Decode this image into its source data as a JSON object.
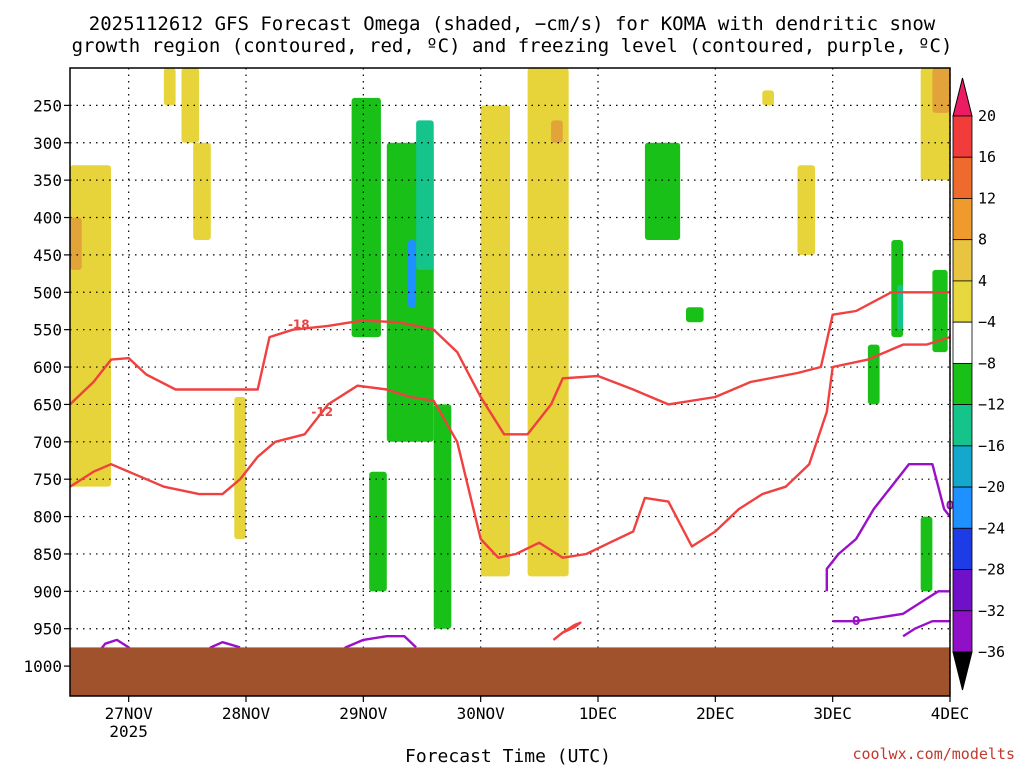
{
  "chart_data": {
    "type": "heatmap",
    "title_line1": "2025112612 GFS Forecast Omega (shaded, −cm/s) for KOMA with dendritic snow",
    "title_line2": "growth region (contoured, red, ºC) and freezing level (contoured, purple, ºC)",
    "xlabel": "Forecast Time (UTC)",
    "ylabel": "",
    "credit": "coolwx.com/modelts",
    "x_days": [
      27,
      28,
      29,
      30,
      31,
      32,
      33,
      34
    ],
    "x_range": [
      26.5,
      34.0
    ],
    "x_tick_labels": [
      "27NOV",
      "28NOV",
      "29NOV",
      "30NOV",
      "1DEC",
      "2DEC",
      "3DEC",
      "4DEC"
    ],
    "x_year_label": "2025",
    "y_ticks": [
      250,
      300,
      350,
      400,
      450,
      500,
      550,
      600,
      650,
      700,
      750,
      800,
      850,
      900,
      950,
      1000
    ],
    "y_range": [
      200,
      1040
    ],
    "colorbar_labels": [
      "20",
      "16",
      "12",
      "8",
      "4",
      "−4",
      "−8",
      "−12",
      "−16",
      "−20",
      "−24",
      "−28",
      "−32",
      "−36"
    ],
    "colorbar_colors": [
      "#ec1c63",
      "#f23c3c",
      "#ef6b2d",
      "#ef9a2d",
      "#e8c440",
      "#e8d840",
      "#ffffff",
      "#18c018",
      "#14c48a",
      "#14a8cc",
      "#1e90ff",
      "#1e3ce6",
      "#7010c8",
      "#9010c8",
      "#a4a4a4",
      "#000000"
    ],
    "shading": [
      {
        "name": "yellow-west",
        "color": "#e6d43a",
        "x": [
          26.5,
          26.85
        ],
        "y": [
          330,
          760
        ]
      },
      {
        "name": "orange-west",
        "color": "#e2a33a",
        "x": [
          26.5,
          26.6
        ],
        "y": [
          400,
          470
        ]
      },
      {
        "name": "yellow-28nov-upper",
        "color": "#e6d43a",
        "x": [
          27.45,
          27.6
        ],
        "y": [
          200,
          300
        ]
      },
      {
        "name": "yellow-28nov-mid",
        "color": "#e6d43a",
        "x": [
          27.55,
          27.7
        ],
        "y": [
          300,
          430
        ]
      },
      {
        "name": "yellow-28nov-low",
        "color": "#e6d43a",
        "x": [
          27.9,
          28.0
        ],
        "y": [
          640,
          830
        ]
      },
      {
        "name": "yellow-28nov-upper2",
        "color": "#e6d43a",
        "x": [
          27.3,
          27.4
        ],
        "y": [
          200,
          250
        ]
      },
      {
        "name": "green-29nov-main",
        "color": "#18c018",
        "x": [
          28.9,
          29.15
        ],
        "y": [
          240,
          560
        ]
      },
      {
        "name": "green-29nov-right",
        "color": "#18c018",
        "x": [
          29.2,
          29.6
        ],
        "y": [
          300,
          700
        ]
      },
      {
        "name": "cyan-29nov",
        "color": "#14c48a",
        "x": [
          29.45,
          29.6
        ],
        "y": [
          270,
          470
        ]
      },
      {
        "name": "blue-29nov",
        "color": "#1e90ff",
        "x": [
          29.38,
          29.45
        ],
        "y": [
          430,
          520
        ]
      },
      {
        "name": "green-29nov-low",
        "color": "#18c018",
        "x": [
          29.05,
          29.2
        ],
        "y": [
          740,
          900
        ]
      },
      {
        "name": "green-30nov-low",
        "color": "#18c018",
        "x": [
          29.6,
          29.75
        ],
        "y": [
          650,
          950
        ]
      },
      {
        "name": "yellow-30nov",
        "color": "#e6d43a",
        "x": [
          30.0,
          30.25
        ],
        "y": [
          250,
          880
        ]
      },
      {
        "name": "yellow-30nov-right",
        "color": "#e6d43a",
        "x": [
          30.4,
          30.75
        ],
        "y": [
          200,
          880
        ]
      },
      {
        "name": "orange-30nov",
        "color": "#e2a33a",
        "x": [
          30.6,
          30.7
        ],
        "y": [
          270,
          300
        ]
      },
      {
        "name": "green-1dec",
        "color": "#18c018",
        "x": [
          31.4,
          31.7
        ],
        "y": [
          300,
          430
        ]
      },
      {
        "name": "green-1dec-low",
        "color": "#18c018",
        "x": [
          31.75,
          31.9
        ],
        "y": [
          520,
          540
        ]
      },
      {
        "name": "yellow-3dec",
        "color": "#e6d43a",
        "x": [
          32.7,
          32.85
        ],
        "y": [
          330,
          450
        ]
      },
      {
        "name": "yellow-2dec-upper",
        "color": "#e6d43a",
        "x": [
          32.4,
          32.5
        ],
        "y": [
          230,
          250
        ]
      },
      {
        "name": "yellow-4dec-upper",
        "color": "#e6d43a",
        "x": [
          33.75,
          34.0
        ],
        "y": [
          200,
          350
        ]
      },
      {
        "name": "orange-4dec-upper",
        "color": "#e2a33a",
        "x": [
          33.85,
          34.0
        ],
        "y": [
          200,
          260
        ]
      },
      {
        "name": "green-4dec",
        "color": "#18c018",
        "x": [
          33.5,
          33.6
        ],
        "y": [
          430,
          560
        ]
      },
      {
        "name": "cyan-4dec",
        "color": "#14c48a",
        "x": [
          33.55,
          33.6
        ],
        "y": [
          490,
          550
        ]
      },
      {
        "name": "green-4dec-low",
        "color": "#18c018",
        "x": [
          33.75,
          33.85
        ],
        "y": [
          800,
          900
        ]
      },
      {
        "name": "green-4dec-east",
        "color": "#18c018",
        "x": [
          33.85,
          33.98
        ],
        "y": [
          470,
          580
        ]
      },
      {
        "name": "green-3dec-mid",
        "color": "#18c018",
        "x": [
          33.3,
          33.4
        ],
        "y": [
          570,
          650
        ]
      }
    ],
    "contours": [
      {
        "name": "minus18-contour",
        "color": "#f04040",
        "label": "-18",
        "label_at": [
          28.45,
          543
        ],
        "points": [
          [
            26.5,
            650
          ],
          [
            26.7,
            620
          ],
          [
            26.85,
            590
          ],
          [
            27.0,
            588
          ],
          [
            27.15,
            610
          ],
          [
            27.4,
            630
          ],
          [
            27.6,
            630
          ],
          [
            27.9,
            630
          ],
          [
            28.1,
            630
          ],
          [
            28.2,
            560
          ],
          [
            28.4,
            550
          ],
          [
            28.7,
            545
          ],
          [
            28.9,
            540
          ],
          [
            29.0,
            538
          ],
          [
            29.3,
            540
          ],
          [
            29.6,
            550
          ],
          [
            29.8,
            580
          ],
          [
            30.0,
            640
          ],
          [
            30.2,
            690
          ],
          [
            30.4,
            690
          ],
          [
            30.6,
            650
          ],
          [
            30.7,
            615
          ],
          [
            31.0,
            612
          ],
          [
            31.3,
            630
          ],
          [
            31.6,
            650
          ],
          [
            32.0,
            640
          ],
          [
            32.3,
            620
          ],
          [
            32.7,
            608
          ],
          [
            32.9,
            600
          ],
          [
            33.0,
            530
          ],
          [
            33.2,
            525
          ],
          [
            33.5,
            500
          ],
          [
            33.8,
            500
          ],
          [
            34.0,
            500
          ]
        ]
      },
      {
        "name": "minus12-contour",
        "color": "#f04040",
        "label": "-12",
        "label_at": [
          28.65,
          660
        ],
        "points": [
          [
            26.5,
            760
          ],
          [
            26.7,
            740
          ],
          [
            26.85,
            730
          ],
          [
            27.0,
            740
          ],
          [
            27.3,
            760
          ],
          [
            27.6,
            770
          ],
          [
            27.8,
            770
          ],
          [
            27.95,
            750
          ],
          [
            28.1,
            720
          ],
          [
            28.25,
            700
          ],
          [
            28.5,
            690
          ],
          [
            28.7,
            650
          ],
          [
            28.95,
            625
          ],
          [
            29.2,
            630
          ],
          [
            29.4,
            640
          ],
          [
            29.6,
            645
          ],
          [
            29.8,
            700
          ],
          [
            30.0,
            830
          ],
          [
            30.15,
            855
          ],
          [
            30.3,
            850
          ],
          [
            30.5,
            835
          ],
          [
            30.7,
            855
          ],
          [
            30.9,
            850
          ],
          [
            31.1,
            835
          ],
          [
            31.3,
            820
          ],
          [
            31.4,
            775
          ],
          [
            31.6,
            780
          ],
          [
            31.8,
            840
          ],
          [
            32.0,
            820
          ],
          [
            32.2,
            790
          ],
          [
            32.4,
            770
          ],
          [
            32.6,
            760
          ],
          [
            32.8,
            730
          ],
          [
            32.95,
            660
          ],
          [
            33.0,
            600
          ],
          [
            33.3,
            590
          ],
          [
            33.6,
            570
          ],
          [
            33.8,
            570
          ],
          [
            34.0,
            560
          ]
        ]
      },
      {
        "name": "minus12-small-contour",
        "color": "#f04040",
        "label": "",
        "label_at": [
          30.75,
          960
        ],
        "points": [
          [
            30.62,
            965
          ],
          [
            30.7,
            955
          ],
          [
            30.8,
            948
          ],
          [
            30.85,
            942
          ],
          [
            30.8,
            945
          ],
          [
            30.7,
            955
          ],
          [
            30.62,
            965
          ]
        ]
      },
      {
        "name": "freezing-level-contour-3dec",
        "color": "#9a10c8",
        "label": "0",
        "label_at": [
          33.2,
          940
        ],
        "points": [
          [
            32.95,
            900
          ],
          [
            32.95,
            870
          ],
          [
            33.05,
            850
          ],
          [
            33.2,
            830
          ],
          [
            33.35,
            790
          ],
          [
            33.5,
            760
          ],
          [
            33.65,
            730
          ],
          [
            33.85,
            730
          ],
          [
            33.95,
            790
          ],
          [
            34.0,
            800
          ]
        ]
      },
      {
        "name": "freezing-level-contour-3dec-lower",
        "color": "#9a10c8",
        "label": "",
        "label_at": [
          33.5,
          940
        ],
        "points": [
          [
            33.0,
            940
          ],
          [
            33.2,
            940
          ],
          [
            33.4,
            935
          ],
          [
            33.6,
            930
          ],
          [
            33.8,
            910
          ],
          [
            33.9,
            900
          ],
          [
            34.0,
            900
          ]
        ]
      },
      {
        "name": "freezing-level-contour-4dec-bottom",
        "color": "#9a10c8",
        "label": "0",
        "label_at": [
          34.0,
          785
        ],
        "points": [
          [
            33.6,
            960
          ],
          [
            33.7,
            950
          ],
          [
            33.85,
            940
          ],
          [
            34.0,
            940
          ]
        ]
      },
      {
        "name": "freezing-level-contour-27nov",
        "color": "#9a10c8",
        "label": "",
        "label_at": [
          26.9,
          980
        ],
        "points": [
          [
            26.7,
            990
          ],
          [
            26.8,
            970
          ],
          [
            26.9,
            965
          ],
          [
            27.0,
            975
          ],
          [
            27.1,
            995
          ]
        ]
      },
      {
        "name": "freezing-level-contour-28nov",
        "color": "#9a10c8",
        "label": "",
        "label_at": [
          27.8,
          980
        ],
        "points": [
          [
            27.6,
            995
          ],
          [
            27.7,
            975
          ],
          [
            27.8,
            968
          ],
          [
            27.95,
            975
          ]
        ]
      },
      {
        "name": "freezing-level-contour-29nov",
        "color": "#9a10c8",
        "label": "",
        "label_at": [
          28.9,
          965
        ],
        "points": [
          [
            28.7,
            995
          ],
          [
            28.85,
            975
          ],
          [
            29.0,
            965
          ],
          [
            29.2,
            960
          ],
          [
            29.35,
            960
          ],
          [
            29.45,
            975
          ]
        ]
      }
    ],
    "ground": {
      "color": "#a0522d",
      "from_pressure": 975
    }
  }
}
